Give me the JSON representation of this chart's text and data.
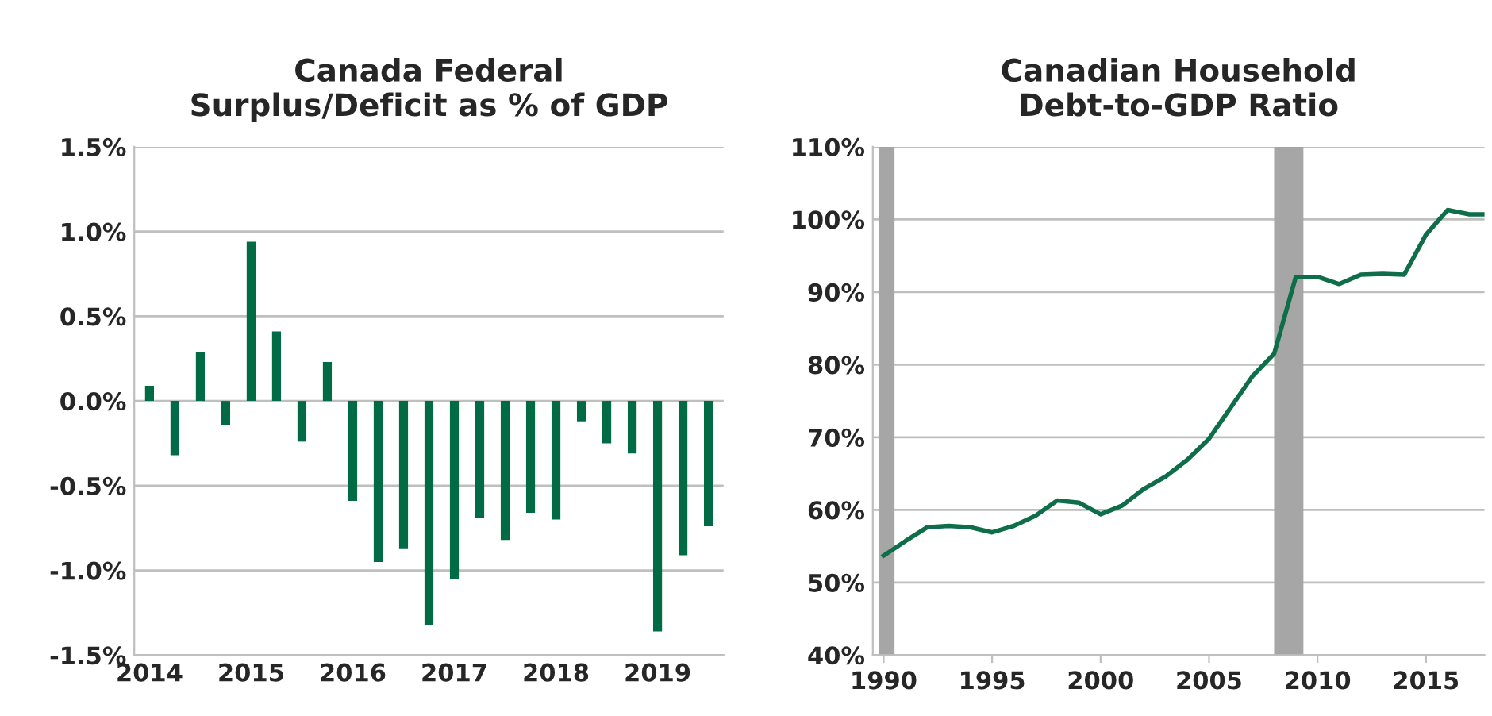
{
  "chart_data": [
    {
      "type": "bar",
      "title": "Canada Federal\nSurplus/Deficit as % of GDP",
      "categories": [
        "2014",
        null,
        null,
        null,
        "2015",
        null,
        null,
        null,
        "2016",
        null,
        null,
        null,
        "2017",
        null,
        null,
        null,
        "2018",
        null,
        null,
        null,
        "2019",
        null,
        null
      ],
      "values": [
        0.09,
        -0.32,
        0.29,
        -0.14,
        0.94,
        0.41,
        -0.24,
        0.23,
        -0.59,
        -0.95,
        -0.87,
        -1.32,
        -1.05,
        -0.69,
        -0.82,
        -0.66,
        -0.7,
        -0.12,
        -0.25,
        -0.31,
        -1.36,
        -0.91,
        -0.74
      ],
      "color": "#006b45",
      "ylim": [
        -1.5,
        1.5
      ],
      "yticks": [
        {
          "value": -1.5,
          "label": "-1.5%"
        },
        {
          "value": -1.0,
          "label": "-1.0%"
        },
        {
          "value": -0.5,
          "label": "-0.5%"
        },
        {
          "value": 0.0,
          "label": "0.0%"
        },
        {
          "value": 0.5,
          "label": "0.5%"
        },
        {
          "value": 1.0,
          "label": "1.0%"
        },
        {
          "value": 1.5,
          "label": "1.5%"
        }
      ],
      "grid": "y"
    },
    {
      "type": "line",
      "title": "Canadian Household\nDebt-to-GDP Ratio",
      "x": [
        1990,
        1991,
        1992,
        1993,
        1994,
        1995,
        1996,
        1997,
        1998,
        1999,
        2000,
        2001,
        2002,
        2003,
        2004,
        2005,
        2006,
        2007,
        2008,
        2009,
        2010,
        2011,
        2012,
        2013,
        2014,
        2015,
        2016,
        2017,
        2017.7
      ],
      "values": [
        53.7,
        55.7,
        57.6,
        57.8,
        57.6,
        56.9,
        57.8,
        59.2,
        61.3,
        61.0,
        59.4,
        60.6,
        62.9,
        64.6,
        66.9,
        69.8,
        74.1,
        78.4,
        81.5,
        92.1,
        92.1,
        91.1,
        92.4,
        92.5,
        92.4,
        97.9,
        101.3,
        100.7,
        100.7
      ],
      "color": "#0e6e4a",
      "xlim": [
        1989.5,
        2017.7
      ],
      "xticks": [
        1990,
        1995,
        2000,
        2005,
        2010,
        2015
      ],
      "ylim": [
        40,
        110
      ],
      "yticks": [
        {
          "value": 40,
          "label": "40%"
        },
        {
          "value": 50,
          "label": "50%"
        },
        {
          "value": 60,
          "label": "60%"
        },
        {
          "value": 70,
          "label": "70%"
        },
        {
          "value": 80,
          "label": "80%"
        },
        {
          "value": 90,
          "label": "90%"
        },
        {
          "value": 100,
          "label": "100%"
        },
        {
          "value": 110,
          "label": "110%"
        }
      ],
      "bands": [
        {
          "axis": "x",
          "from": 1989.8,
          "to": 1990.5,
          "color": "#a6a6a6"
        },
        {
          "axis": "x",
          "from": 2008.0,
          "to": 2009.35,
          "color": "#a6a6a6"
        }
      ],
      "grid": "y",
      "marker": "none",
      "line_style": "solid"
    }
  ]
}
